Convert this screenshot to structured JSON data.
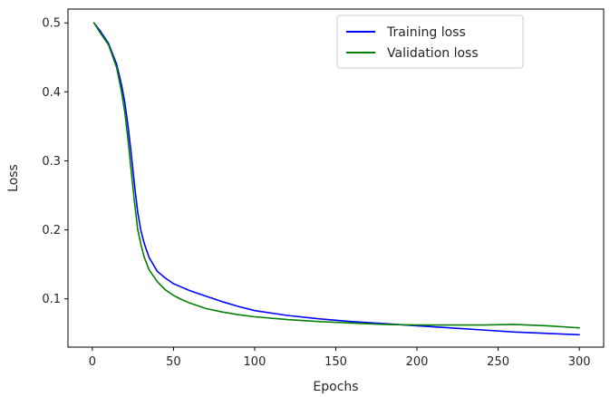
{
  "chart_data": {
    "type": "line",
    "xlabel": "Epochs",
    "ylabel": "Loss",
    "xlim": [
      -15,
      315
    ],
    "ylim": [
      0.03,
      0.52
    ],
    "xticks": [
      0,
      50,
      100,
      150,
      200,
      250,
      300
    ],
    "yticks": [
      0.1,
      0.2,
      0.3,
      0.4,
      0.5
    ],
    "grid": false,
    "legend_position": "top-right",
    "series": [
      {
        "name": "Training loss",
        "color": "#0000ff",
        "x": [
          1,
          5,
          10,
          15,
          18,
          20,
          22,
          24,
          26,
          28,
          30,
          32,
          35,
          38,
          40,
          45,
          50,
          55,
          60,
          70,
          80,
          90,
          100,
          120,
          140,
          160,
          180,
          200,
          220,
          240,
          260,
          280,
          300
        ],
        "y": [
          0.5,
          0.488,
          0.47,
          0.44,
          0.41,
          0.385,
          0.35,
          0.31,
          0.265,
          0.225,
          0.198,
          0.18,
          0.16,
          0.148,
          0.14,
          0.13,
          0.122,
          0.117,
          0.112,
          0.104,
          0.096,
          0.089,
          0.083,
          0.076,
          0.071,
          0.067,
          0.064,
          0.061,
          0.058,
          0.055,
          0.052,
          0.05,
          0.048
        ]
      },
      {
        "name": "Validation loss",
        "color": "#008000",
        "x": [
          1,
          5,
          10,
          15,
          18,
          20,
          22,
          24,
          26,
          28,
          30,
          32,
          35,
          38,
          40,
          45,
          50,
          55,
          60,
          70,
          80,
          90,
          100,
          120,
          140,
          160,
          180,
          200,
          220,
          240,
          260,
          280,
          300
        ],
        "y": [
          0.5,
          0.485,
          0.468,
          0.435,
          0.4,
          0.37,
          0.33,
          0.285,
          0.24,
          0.2,
          0.178,
          0.16,
          0.142,
          0.132,
          0.125,
          0.113,
          0.105,
          0.099,
          0.094,
          0.086,
          0.081,
          0.077,
          0.074,
          0.07,
          0.067,
          0.065,
          0.063,
          0.062,
          0.062,
          0.062,
          0.063,
          0.061,
          0.058
        ]
      }
    ]
  }
}
